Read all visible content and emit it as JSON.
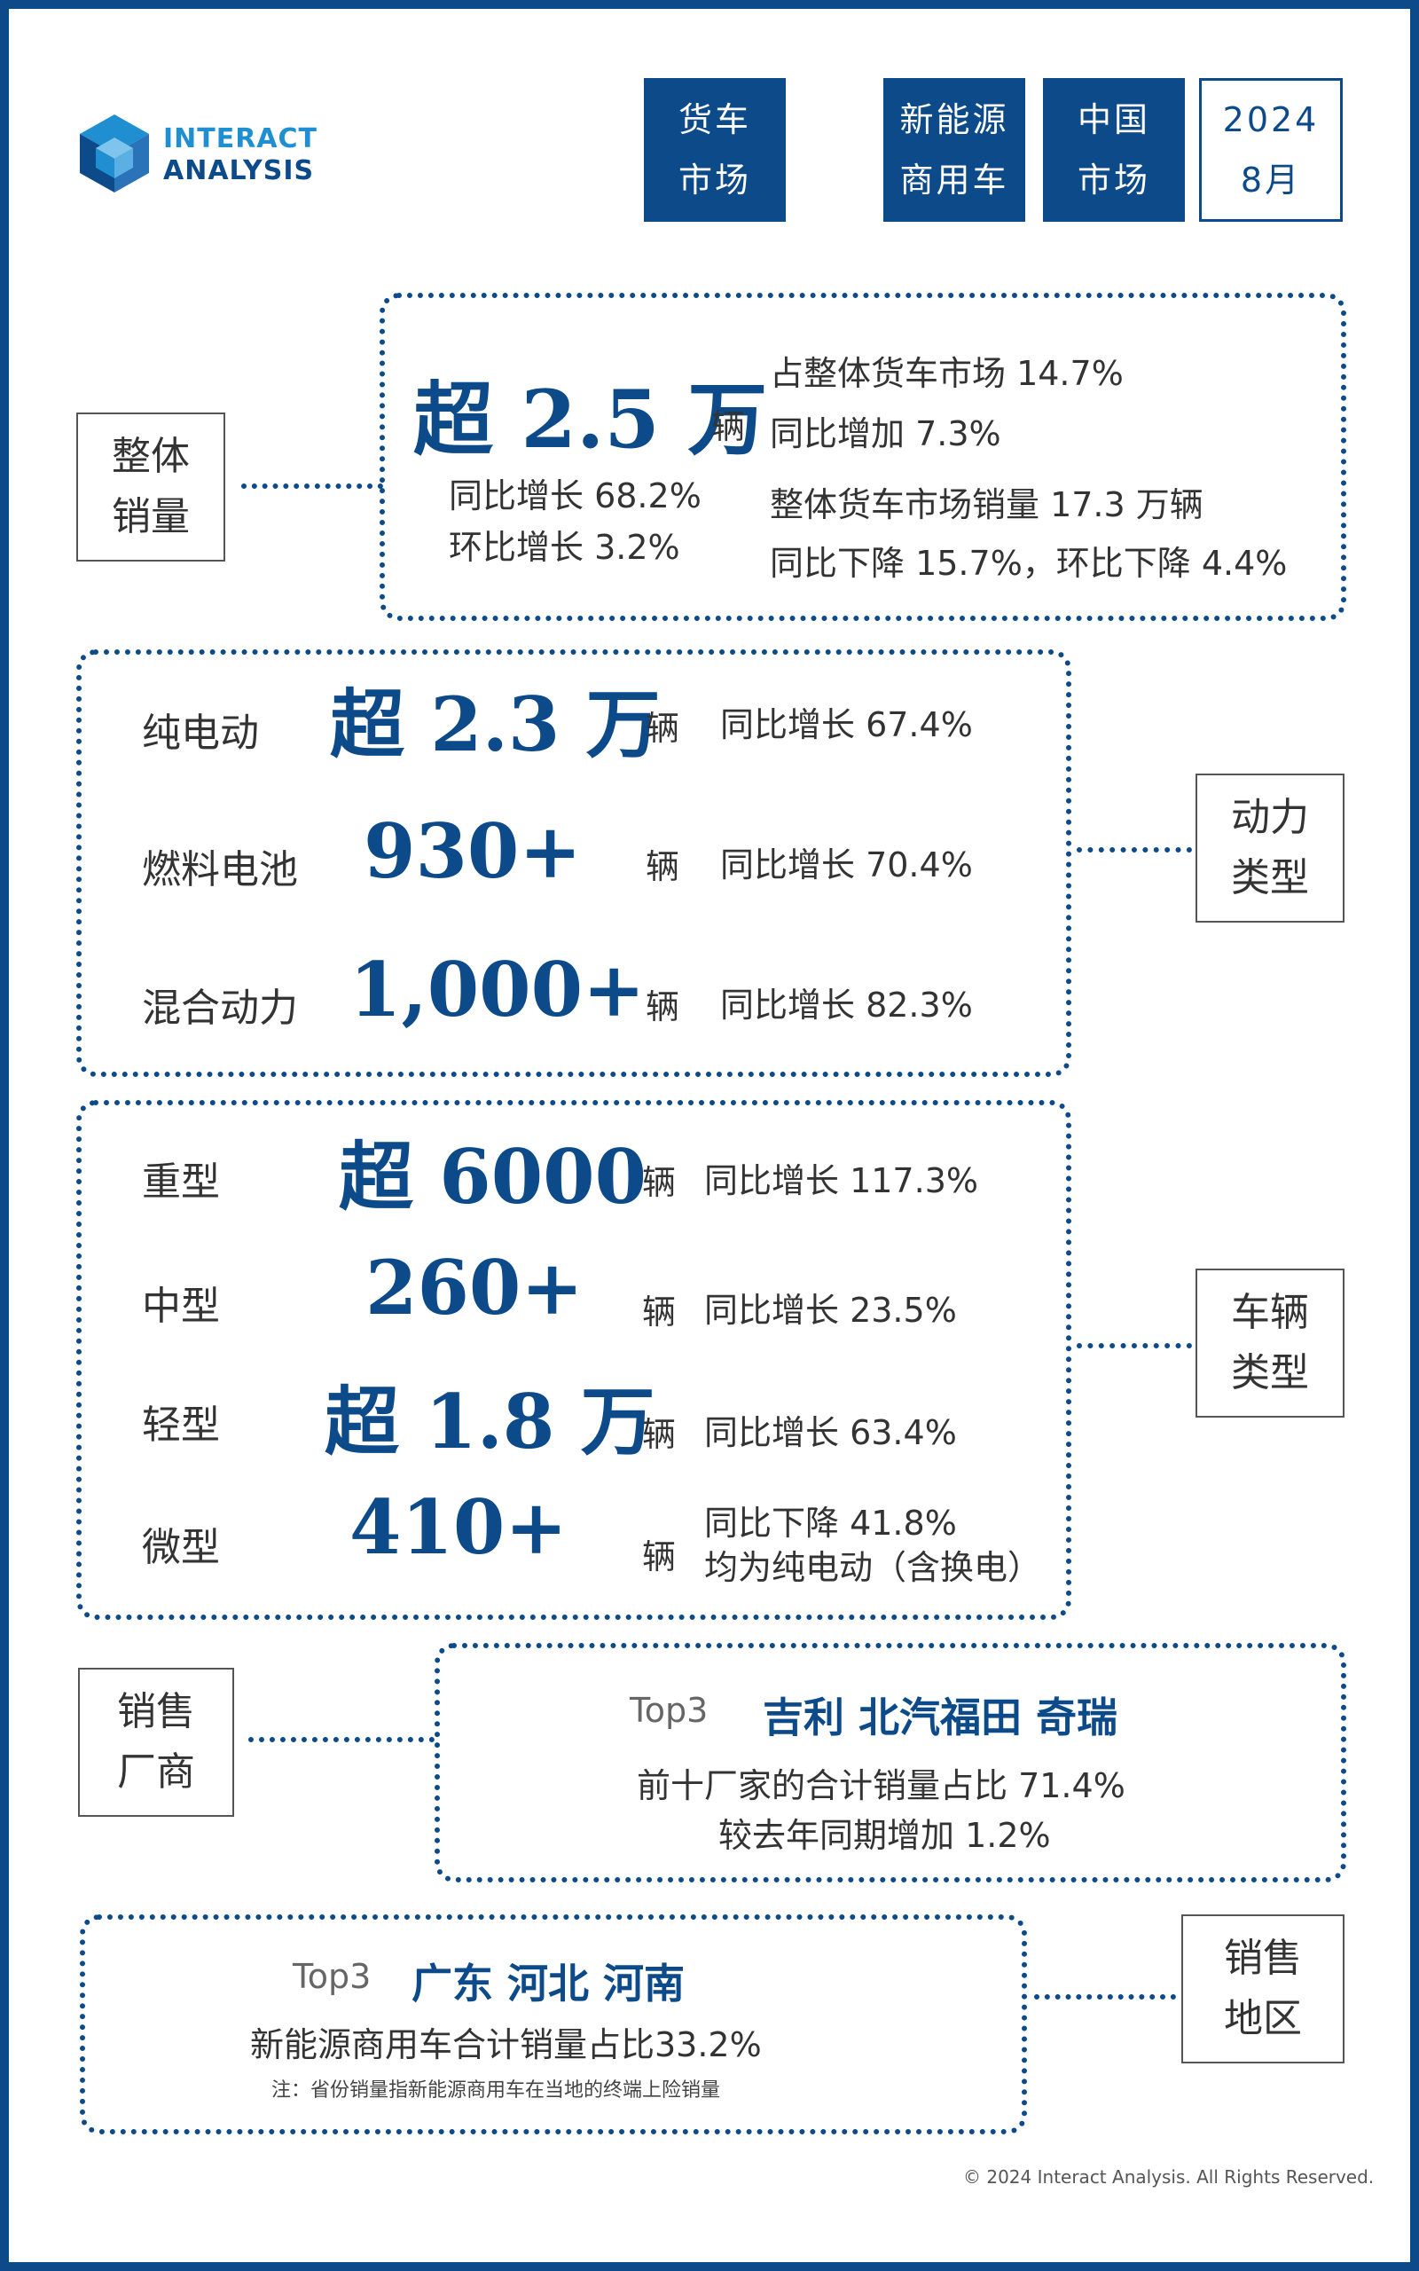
{
  "brand": {
    "line1": "INTERACT",
    "line2": "ANALYSIS"
  },
  "tags": [
    {
      "line1": "货车",
      "line2": "市场"
    },
    {
      "line1": "新能源",
      "line2": "商用车"
    },
    {
      "line1": "中国",
      "line2": "市场"
    },
    {
      "line1": "2024",
      "line2": "8月"
    }
  ],
  "overall": {
    "label1": "整体",
    "label2": "销量",
    "big": "超 2.5 万",
    "unit": "辆",
    "yoy": "同比增长 68.2%",
    "mom": "环比增长 3.2%",
    "share": "占整体货车市场 14.7%",
    "share_yoy": "同比增加 7.3%",
    "market": "整体货车市场销量 17.3 万辆",
    "market_change": "同比下降 15.7%，环比下降 4.4%"
  },
  "power": {
    "label1": "动力",
    "label2": "类型",
    "rows": [
      {
        "name": "纯电动",
        "value": "超 2.3 万",
        "unit": "辆",
        "stat": "同比增长 67.4%"
      },
      {
        "name": "燃料电池",
        "value": "930+",
        "unit": "辆",
        "stat": "同比增长 70.4%"
      },
      {
        "name": "混合动力",
        "value": "1,000+",
        "unit": "辆",
        "stat": "同比增长 82.3%"
      }
    ]
  },
  "vehicle": {
    "label1": "车辆",
    "label2": "类型",
    "rows": [
      {
        "name": "重型",
        "value": "超 6000",
        "unit": "辆",
        "stat": "同比增长 117.3%",
        "note": ""
      },
      {
        "name": "中型",
        "value": "260+",
        "unit": "辆",
        "stat": "同比增长 23.5%",
        "note": ""
      },
      {
        "name": "轻型",
        "value": "超 1.8 万",
        "unit": "辆",
        "stat": "同比增长 63.4%",
        "note": ""
      },
      {
        "name": "微型",
        "value": "410+",
        "unit": "辆",
        "stat": "同比下降 41.8%",
        "note": "均为纯电动（含换电）"
      }
    ]
  },
  "makers": {
    "label1": "销售",
    "label2": "厂商",
    "top_label": "Top3",
    "top_names": "吉利 北汽福田 奇瑞",
    "line1": "前十厂家的合计销量占比 71.4%",
    "line2": "较去年同期增加 1.2%"
  },
  "regions": {
    "label1": "销售",
    "label2": "地区",
    "top_label": "Top3",
    "top_names": "广东 河北 河南",
    "line1": "新能源商用车合计销量占比33.2%",
    "note": "注：省份销量指新能源商用车在当地的终端上险销量"
  },
  "copyright": "© 2024 Interact Analysis. All Rights Reserved."
}
